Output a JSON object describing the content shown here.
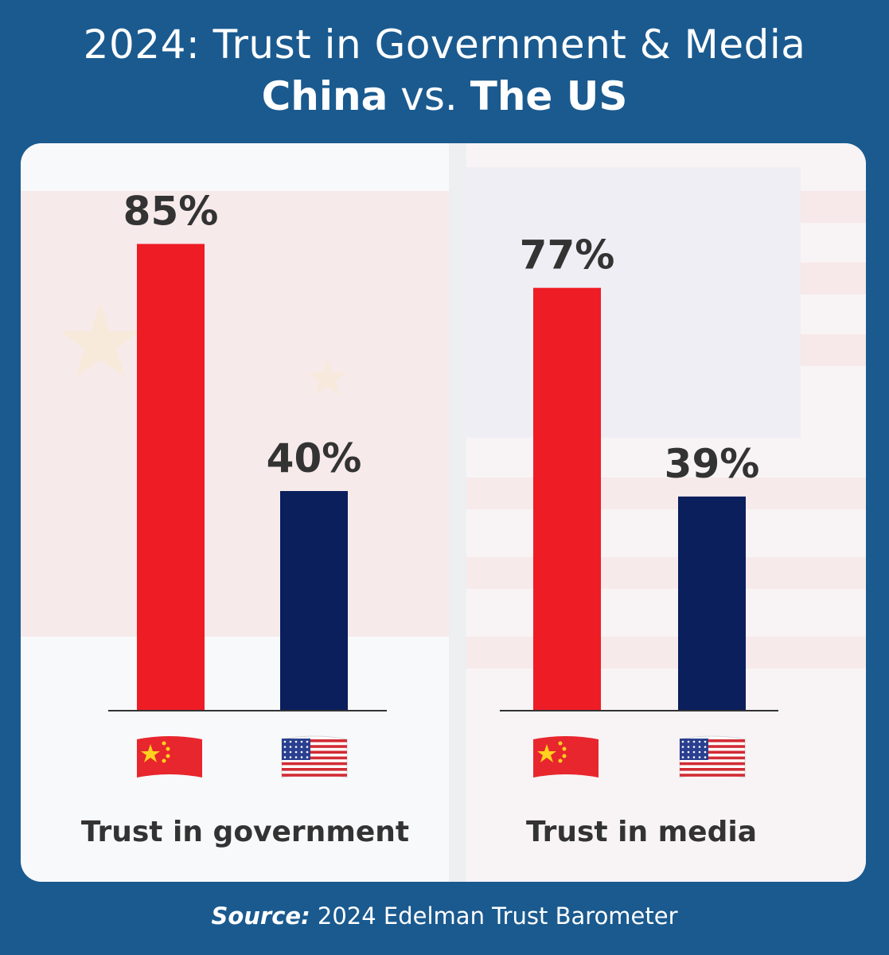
{
  "title": {
    "line1": "2024: Trust in Government & Media",
    "country_a": "China",
    "vs": "vs.",
    "country_b": "The US"
  },
  "source": {
    "label": "Source:",
    "text": "2024 Edelman Trust Barometer"
  },
  "colors": {
    "background": "#1a5a8f",
    "china": "#ee1c25",
    "us": "#0a1f5c",
    "text": "#333333"
  },
  "chart_data": {
    "type": "bar",
    "categories": [
      "Trust in government",
      "Trust in media"
    ],
    "series": [
      {
        "values": [
          85,
          40
        ],
        "flags": [
          "china-flag",
          "us-flag"
        ]
      },
      {
        "values": [
          77,
          39
        ],
        "flags": [
          "china-flag",
          "us-flag"
        ]
      }
    ],
    "value_suffix": "%",
    "ylim": [
      0,
      100
    ],
    "grid": false,
    "legend": "none"
  }
}
